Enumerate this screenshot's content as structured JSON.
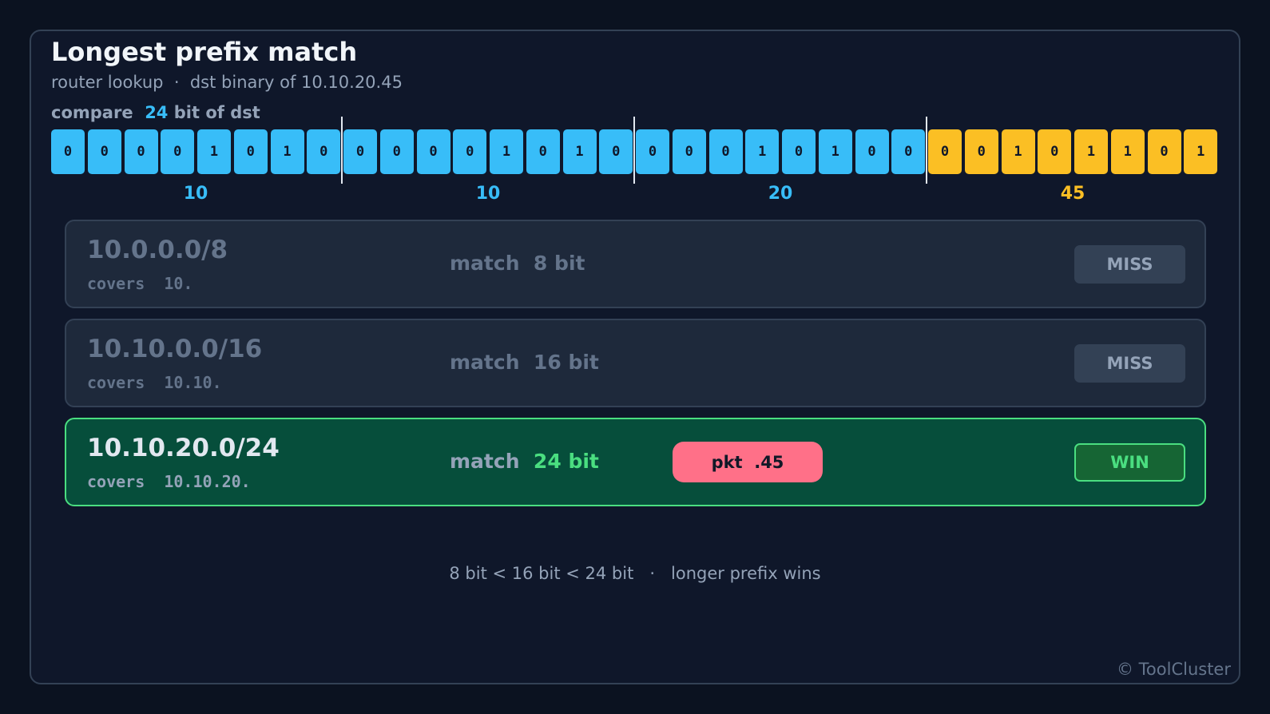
{
  "header": {
    "title": "Longest prefix match",
    "subtitle": "router lookup  ·  dst binary of 10.10.20.45"
  },
  "compare": {
    "prefix": "compare",
    "bits": 24,
    "suffix": "bit of dst"
  },
  "address_bits": [
    0,
    0,
    0,
    0,
    1,
    0,
    1,
    0,
    0,
    0,
    0,
    0,
    1,
    0,
    1,
    0,
    0,
    0,
    0,
    1,
    0,
    1,
    0,
    0,
    0,
    0,
    1,
    0,
    1,
    1,
    0,
    1
  ],
  "octets": [
    10,
    10,
    20,
    45
  ],
  "routes": [
    {
      "prefix": "10.0.0.0/8",
      "covers_label": "covers",
      "covers": "10.",
      "match": {
        "label": "match",
        "bits": 8,
        "unit": "bit"
      },
      "status": "MISS"
    },
    {
      "prefix": "10.10.0.0/16",
      "covers_label": "covers",
      "covers": "10.10.",
      "match": {
        "label": "match",
        "bits": 16,
        "unit": "bit"
      },
      "status": "MISS"
    },
    {
      "prefix": "10.10.20.0/24",
      "covers_label": "covers",
      "covers": "10.10.20.",
      "match": {
        "label": "match",
        "bits": 24,
        "unit": "bit"
      },
      "packet": "pkt  .45",
      "status": "WIN"
    }
  ],
  "footer": "8 bit < 16 bit < 24 bit   ·   longer prefix wins",
  "copyright": "© ToolCluster"
}
